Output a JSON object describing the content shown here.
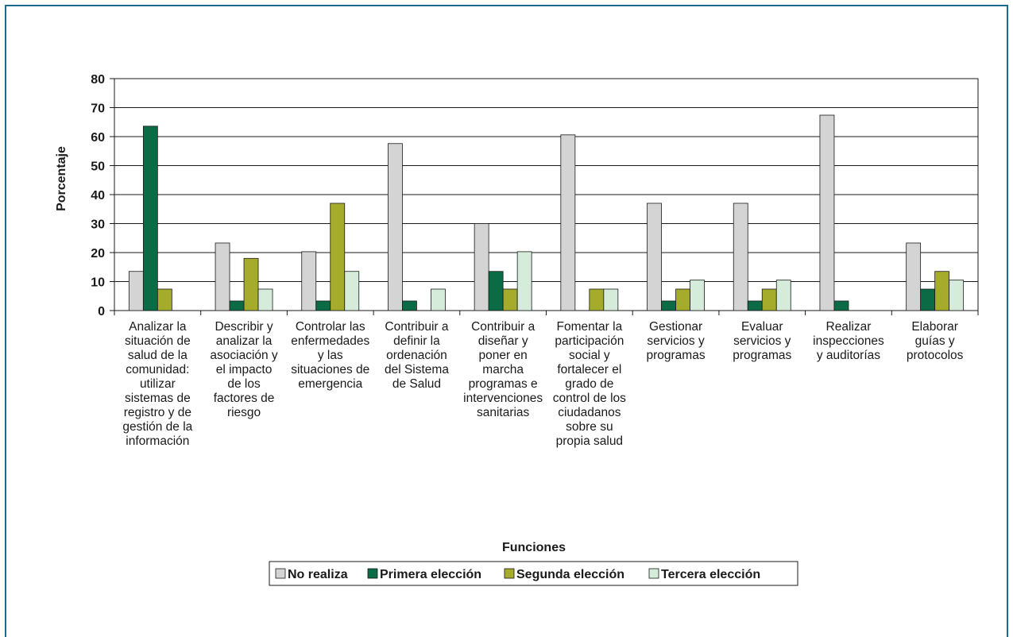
{
  "chart_data": {
    "type": "bar",
    "ylabel": "Porcentaje",
    "xlabel": "Funciones",
    "ylim": [
      0,
      80
    ],
    "yticks": [
      0,
      10,
      20,
      30,
      40,
      50,
      60,
      70,
      80
    ],
    "grid": true,
    "legend_position": "bottom",
    "categories": [
      [
        "Analizar la",
        "situación de",
        "salud de la",
        "comunidad:",
        "utilizar",
        "sistemas de",
        "registro y de",
        "gestión de la",
        "información"
      ],
      [
        "Describir y",
        "analizar la",
        "asociación y",
        "el impacto",
        "de los",
        "factores de",
        "riesgo"
      ],
      [
        "Controlar las",
        "enfermedades",
        "y las",
        "situaciones de",
        "emergencia"
      ],
      [
        "Contribuir a",
        "definir la",
        "ordenación",
        "del Sistema",
        "de Salud"
      ],
      [
        "Contribuir a",
        "diseñar y",
        "poner en",
        "marcha",
        "programas e",
        "intervenciones",
        "sanitarias"
      ],
      [
        "Fomentar la",
        "participación",
        "social y",
        "fortalecer el",
        "grado de",
        "control de los",
        "ciudadanos",
        "sobre su",
        "propia salud"
      ],
      [
        "Gestionar",
        "servicios y",
        "programas"
      ],
      [
        "Evaluar",
        "servicios y",
        "programas"
      ],
      [
        "Realizar",
        "inspecciones",
        "y auditorías"
      ],
      [
        "Elaborar",
        "guías y",
        "protocolos"
      ]
    ],
    "series": [
      {
        "name": "No realiza",
        "color": "#d4d4d4",
        "values": [
          13.5,
          23.3,
          20.3,
          57.6,
          30.0,
          60.6,
          37.0,
          37.0,
          67.4,
          23.3
        ]
      },
      {
        "name": "Primera elección",
        "color": "#0b6b45",
        "values": [
          63.6,
          3.3,
          3.3,
          3.3,
          13.5,
          0,
          3.3,
          3.3,
          3.3,
          7.4
        ]
      },
      {
        "name": "Segunda elección",
        "color": "#a5ab2a",
        "values": [
          7.4,
          18.0,
          37.0,
          0,
          7.4,
          7.4,
          7.4,
          7.4,
          0,
          13.5
        ]
      },
      {
        "name": "Tercera elección",
        "color": "#d6ecdb",
        "values": [
          0,
          7.4,
          13.5,
          7.4,
          20.3,
          7.4,
          10.5,
          10.5,
          0,
          10.5
        ]
      }
    ]
  }
}
